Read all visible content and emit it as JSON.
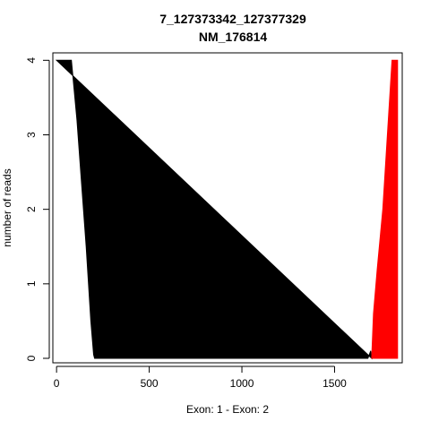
{
  "chart_data": {
    "type": "area",
    "title": "7_127373342_127377329",
    "subtitle": "NM_176814",
    "xlabel": "Exon: 1 - Exon: 2",
    "ylabel": "number of reads",
    "xlim": [
      -20,
      1865
    ],
    "ylim": [
      -0.06,
      4.1
    ],
    "xticks": [
      0,
      500,
      1000,
      1500
    ],
    "yticks": [
      0,
      1,
      2,
      3,
      4
    ],
    "grid": false,
    "legend": "none",
    "series": [
      {
        "color": "#000000",
        "x": [
          0,
          80,
          110,
          160,
          185,
          200,
          205,
          1680,
          1695,
          1700
        ],
        "y": [
          4,
          4,
          3.2,
          1.5,
          0.5,
          0.05,
          0,
          0,
          0.1,
          0
        ]
      },
      {
        "color": "#ff0000",
        "x": [
          1700,
          1710,
          1730,
          1760,
          1780,
          1795,
          1810,
          1840,
          1840
        ],
        "y": [
          0,
          0.6,
          1.2,
          2.0,
          2.8,
          3.4,
          4.0,
          4.0,
          0
        ]
      }
    ]
  }
}
